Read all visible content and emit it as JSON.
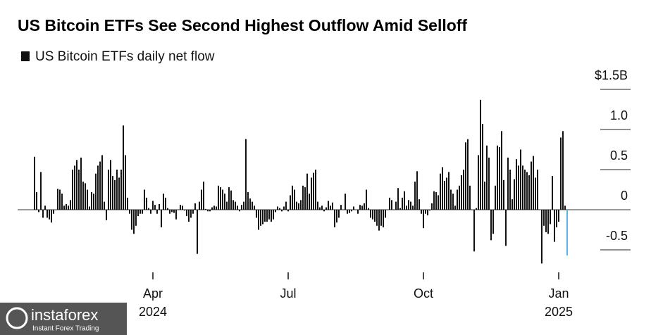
{
  "chart_data": {
    "type": "bar",
    "title": "US Bitcoin ETFs See Second Highest Outflow Amid Selloff",
    "legend": "US Bitcoin ETFs daily net flow",
    "color": "#111111",
    "highlight_color": "#5ab4e6",
    "ylim": [
      -0.8,
      1.6
    ],
    "yticks": [
      -0.5,
      0,
      0.5,
      {
        "value": 1.0,
        "label": "1.0"
      },
      {
        "value": 1.5,
        "label": "$1.5B"
      }
    ],
    "categories": [
      null,
      null,
      null,
      null,
      null,
      null,
      null,
      null,
      null,
      null,
      null,
      null,
      null,
      null,
      null,
      null,
      null,
      null,
      null,
      null,
      null,
      null,
      null,
      null,
      null,
      null,
      null,
      null,
      null,
      null,
      null,
      null,
      null,
      null,
      null,
      null,
      null,
      null,
      null,
      null,
      null,
      null,
      null,
      null,
      null,
      null,
      null,
      null,
      null,
      null,
      null,
      null,
      null,
      null,
      null,
      null,
      "Apr\n2024",
      null,
      null,
      null,
      null,
      null,
      null,
      null,
      null,
      null,
      null,
      null,
      null,
      null,
      null,
      null,
      null,
      null,
      null,
      null,
      null,
      null,
      null,
      null,
      null,
      null,
      null,
      null,
      null,
      null,
      null,
      null,
      null,
      null,
      null,
      null,
      null,
      null,
      null,
      null,
      null,
      null,
      null,
      null,
      null,
      null,
      null,
      null,
      null,
      null,
      null,
      null,
      null,
      null,
      null,
      null,
      null,
      null,
      null,
      null,
      null,
      null,
      null,
      null,
      "Jul",
      null,
      null,
      null,
      null,
      null,
      null,
      null,
      null,
      null,
      null,
      null,
      null,
      null,
      null,
      null,
      null,
      null,
      null,
      null,
      null,
      null,
      null,
      null,
      null,
      null,
      null,
      null,
      null,
      null,
      null,
      null,
      null,
      null,
      null,
      null,
      null,
      null,
      null,
      null,
      null,
      null,
      null,
      null,
      null,
      null,
      null,
      null,
      null,
      null,
      null,
      null,
      null,
      null,
      null,
      null,
      null,
      null,
      null,
      null,
      null,
      null,
      null,
      null,
      "Oct",
      null,
      null,
      null,
      null,
      null,
      null,
      null,
      null,
      null,
      null,
      null,
      null,
      null,
      null,
      null,
      null,
      null,
      null,
      null,
      null,
      null,
      null,
      null,
      null,
      null,
      null,
      null,
      null,
      null,
      null,
      null,
      null,
      null,
      null,
      null,
      null,
      null,
      null,
      null,
      null,
      null,
      null,
      null,
      null,
      null,
      null,
      null,
      null,
      null,
      null,
      null,
      null,
      null,
      null,
      null,
      null,
      null,
      null,
      null,
      null,
      null,
      null,
      null,
      "Jan\n2025",
      null,
      null,
      null,
      null
    ],
    "values": [
      0.66,
      0.22,
      -0.03,
      0.47,
      -0.1,
      0.05,
      -0.1,
      -0.12,
      -0.16,
      -0.05,
      0.0,
      0.26,
      0.25,
      0.2,
      0.05,
      0.07,
      0.05,
      0.12,
      0.5,
      0.55,
      0.62,
      0.5,
      0.65,
      0.35,
      0.33,
      0.25,
      0.04,
      0.22,
      0.2,
      0.45,
      0.55,
      0.6,
      0.68,
      0.1,
      -0.13,
      0.5,
      0.62,
      0.42,
      0.37,
      0.5,
      0.4,
      0.5,
      1.05,
      0.68,
      0.15,
      -0.05,
      -0.25,
      -0.3,
      -0.2,
      -0.08,
      -0.05,
      -0.05,
      0.25,
      0.15,
      0.02,
      -0.05,
      0.11,
      0.06,
      -0.05,
      0.07,
      -0.22,
      0.2,
      0.15,
      0.02,
      -0.05,
      -0.03,
      -0.04,
      -0.12,
      0.0,
      0.06,
      0.05,
      -0.01,
      -0.08,
      -0.15,
      -0.1,
      -0.05,
      0.08,
      -0.55,
      0.1,
      0.25,
      0.35,
      0.01,
      -0.02,
      -0.02,
      0.03,
      0.05,
      0.04,
      0.3,
      0.28,
      0.25,
      0.2,
      0.1,
      0.28,
      0.24,
      0.12,
      0.1,
      0.05,
      -0.02,
      0.06,
      0.1,
      0.88,
      0.22,
      0.14,
      0.1,
      0.05,
      -0.1,
      -0.25,
      -0.2,
      -0.18,
      -0.15,
      -0.15,
      -0.12,
      -0.15,
      -0.12,
      -0.03,
      0.04,
      0.02,
      -0.02,
      0.04,
      0.1,
      -0.02,
      0.18,
      0.3,
      0.25,
      0.1,
      0.08,
      0.12,
      0.3,
      0.28,
      0.45,
      0.2,
      0.4,
      0.46,
      0.5,
      0.1,
      0.03,
      0.05,
      -0.02,
      0.03,
      0.11,
      0.05,
      0.09,
      -0.22,
      -0.16,
      -0.1,
      0.06,
      0.0,
      0.2,
      -0.05,
      -0.04,
      -0.02,
      0.04,
      0.0,
      -0.05,
      0.06,
      0.05,
      0.08,
      0.25,
      0.02,
      -0.1,
      -0.12,
      -0.15,
      -0.2,
      -0.26,
      -0.2,
      -0.22,
      -0.1,
      0.0,
      0.15,
      0.12,
      0.0,
      0.1,
      0.27,
      0.02,
      0.15,
      0.23,
      0.05,
      0.12,
      0.1,
      0.05,
      0.35,
      0.48,
      0.13,
      -0.05,
      -0.23,
      -0.05,
      -0.07,
      -0.01,
      0.08,
      0.23,
      0.22,
      0.18,
      0.45,
      0.53,
      0.36,
      0.4,
      0.47,
      0.25,
      0.2,
      0.05,
      0.25,
      0.3,
      0.43,
      0.5,
      0.84,
      0.88,
      0.3,
      0.0,
      -0.52,
      0.02,
      0.68,
      1.37,
      1.07,
      0.35,
      0.8,
      0.65,
      -0.38,
      -0.3,
      0.3,
      0.8,
      0.78,
      0.98,
      0.37,
      -0.45,
      0.65,
      0.5,
      0.13,
      0.38,
      0.63,
      0.55,
      0.75,
      0.55,
      0.5,
      0.47,
      0.43,
      0.6,
      0.67,
      0.4,
      0.5,
      0.0,
      -0.67,
      -0.2,
      -0.28,
      -0.3,
      -0.18,
      0.42,
      -0.4,
      -0.22,
      -0.15,
      0.9,
      0.98,
      0.05,
      -0.57
    ]
  },
  "watermark": {
    "brand": "instaforex",
    "tagline": "Instant Forex Trading"
  }
}
